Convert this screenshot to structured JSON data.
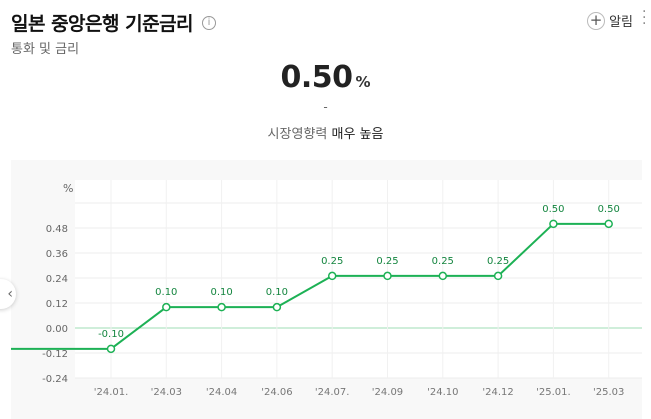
{
  "header": {
    "title": "일본 중앙은행 기준금리",
    "info_icon": "info-icon",
    "subtitle": "통화 및 금리",
    "alarm_label": "알림"
  },
  "summary": {
    "value": "0.50",
    "unit": "%",
    "change": "-",
    "impact_label": "시장영향력",
    "impact_value": "매우 높음"
  },
  "colors": {
    "line": "#1db155",
    "grid_zero": "#9fdcb5",
    "grid": "#ececec"
  },
  "chart_data": {
    "type": "line",
    "ylabel": "%",
    "ylim": [
      -0.24,
      0.6
    ],
    "y_ticks": [
      "0.48",
      "0.36",
      "0.24",
      "0.12",
      "0.00",
      "-0.12",
      "-0.24"
    ],
    "categories": [
      "'24.01.",
      "'24.03",
      "'24.04",
      "'24.06",
      "'24.07.",
      "'24.09",
      "'24.10",
      "'24.12",
      "'25.01.",
      "'25.03"
    ],
    "values": [
      -0.1,
      0.1,
      0.1,
      0.1,
      0.25,
      0.25,
      0.25,
      0.25,
      0.5,
      0.5
    ],
    "value_labels": [
      "-0.10",
      "0.10",
      "0.10",
      "0.10",
      "0.25",
      "0.25",
      "0.25",
      "0.25",
      "0.50",
      "0.50"
    ]
  }
}
